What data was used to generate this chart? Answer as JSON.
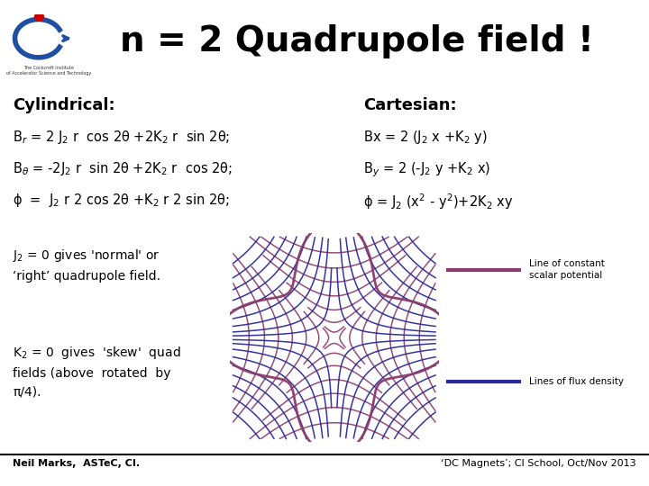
{
  "title": "n = 2 Quadrupole field !",
  "title_fontsize": 28,
  "title_fontweight": "bold",
  "bg_color": "#ffffff",
  "text_color": "#000000",
  "cylindrical_label": "Cylindrical:",
  "cartesian_label": "Cartesian:",
  "text_J2": "J$_2$ = 0 gives 'normal' or\n‘right’ quadrupole field.",
  "text_K2": "K$_2$ = 0  gives  'skew'  quad\nfields (above  rotated  by\nπ/4).",
  "legend1_text": "Line of constant\nscalar potential",
  "legend2_text": "Lines of flux density",
  "legend1_color": "#8B3A6B",
  "legend2_color": "#2B2B9A",
  "flux_line_color": "#2B2B9A",
  "potential_line_color": "#8B3A6B",
  "footer_left": "Neil Marks,  ASTeC, CI.",
  "footer_right": "‘DC Magnets’; CI School, Oct/Nov 2013"
}
